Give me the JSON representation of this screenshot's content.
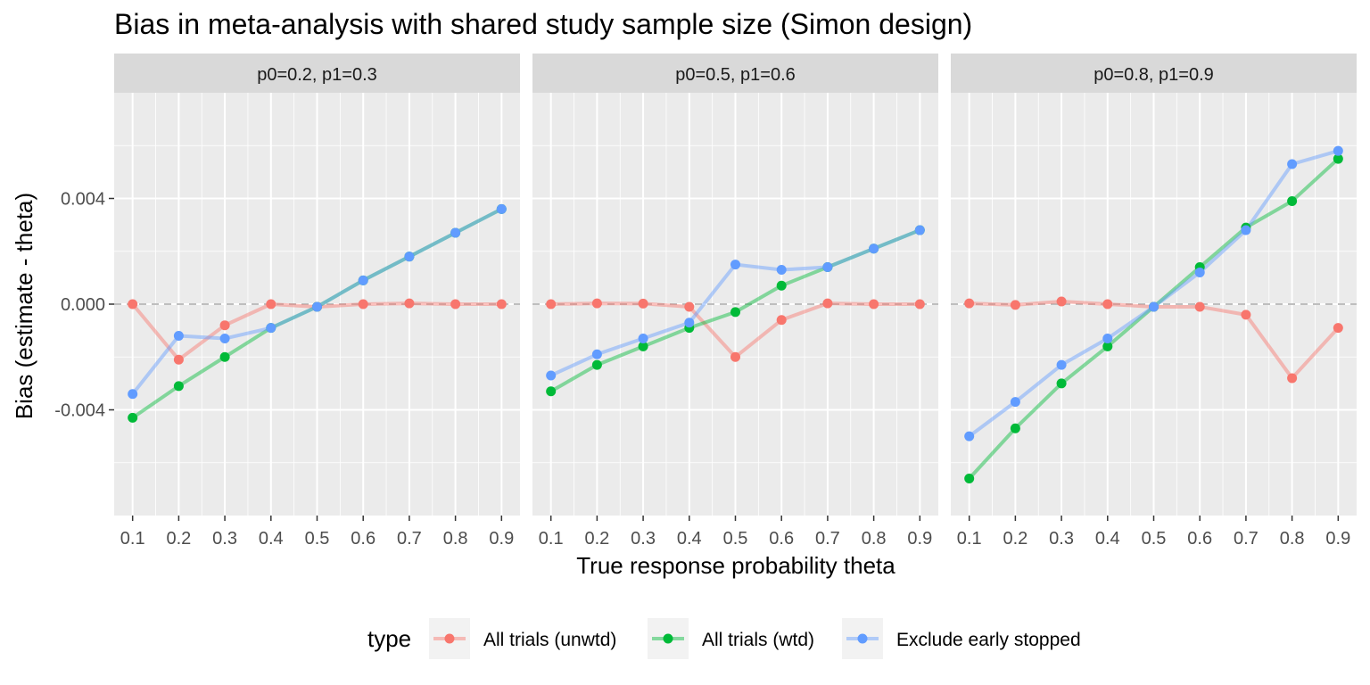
{
  "chart_data": {
    "type": "line",
    "title": "Bias in meta-analysis with shared study sample size (Simon design)",
    "xlabel": "True response probability theta",
    "ylabel": "Bias (estimate - theta)",
    "x": [
      0.1,
      0.2,
      0.3,
      0.4,
      0.5,
      0.6,
      0.7,
      0.8,
      0.9
    ],
    "x_tick_labels": [
      "0.1",
      "0.2",
      "0.3",
      "0.4",
      "0.5",
      "0.6",
      "0.7",
      "0.8",
      "0.9"
    ],
    "xlim": [
      0.06,
      0.94
    ],
    "ylim": [
      -0.008,
      0.008
    ],
    "y_ticks": [
      -0.004,
      0.0,
      0.004
    ],
    "y_tick_labels": [
      "-0.004",
      "0.000",
      "0.004"
    ],
    "grid": true,
    "reference_line_y": 0,
    "legend": {
      "title": "type",
      "position": "bottom",
      "entries": [
        "All trials (unwtd)",
        "All trials (wtd)",
        "Exclude early stopped"
      ]
    },
    "colors": {
      "All trials (unwtd)": "#F8766D",
      "All trials (wtd)": "#00BA38",
      "Exclude early stopped": "#619CFF"
    },
    "panels": [
      {
        "label": "p0=0.2, p1=0.3",
        "series": [
          {
            "name": "All trials (unwtd)",
            "values": [
              0.0,
              -0.0021,
              -0.0008,
              0.0,
              -0.0001,
              0.0,
              3e-05,
              0.0,
              0.0
            ]
          },
          {
            "name": "All trials (wtd)",
            "values": [
              -0.0043,
              -0.0031,
              -0.002,
              -0.0009,
              -0.0001,
              0.0009,
              0.0018,
              0.0027,
              0.0036
            ]
          },
          {
            "name": "Exclude early stopped",
            "values": [
              -0.0034,
              -0.0012,
              -0.0013,
              -0.0009,
              -0.0001,
              0.0009,
              0.0018,
              0.0027,
              0.0036
            ]
          }
        ]
      },
      {
        "label": "p0=0.5, p1=0.6",
        "series": [
          {
            "name": "All trials (unwtd)",
            "values": [
              0.0,
              3e-05,
              2e-05,
              -0.0001,
              -0.002,
              -0.0006,
              3e-05,
              0.0,
              0.0
            ]
          },
          {
            "name": "All trials (wtd)",
            "values": [
              -0.0033,
              -0.0023,
              -0.0016,
              -0.0009,
              -0.0003,
              0.0007,
              0.0014,
              0.0021,
              0.0028
            ]
          },
          {
            "name": "Exclude early stopped",
            "values": [
              -0.0027,
              -0.0019,
              -0.0013,
              -0.0007,
              0.0015,
              0.0013,
              0.0014,
              0.0021,
              0.0028
            ]
          }
        ]
      },
      {
        "label": "p0=0.8, p1=0.9",
        "series": [
          {
            "name": "All trials (unwtd)",
            "values": [
              3e-05,
              -3e-05,
              0.0001,
              0.0,
              -0.0001,
              -0.0001,
              -0.0004,
              -0.0028,
              -0.0009
            ]
          },
          {
            "name": "All trials (wtd)",
            "values": [
              -0.0066,
              -0.0047,
              -0.003,
              -0.0016,
              -0.0001,
              0.0014,
              0.0029,
              0.0039,
              0.0055
            ]
          },
          {
            "name": "Exclude early stopped",
            "values": [
              -0.005,
              -0.0037,
              -0.0023,
              -0.0013,
              -0.0001,
              0.0012,
              0.0028,
              0.0053,
              0.0058
            ]
          }
        ]
      }
    ]
  }
}
